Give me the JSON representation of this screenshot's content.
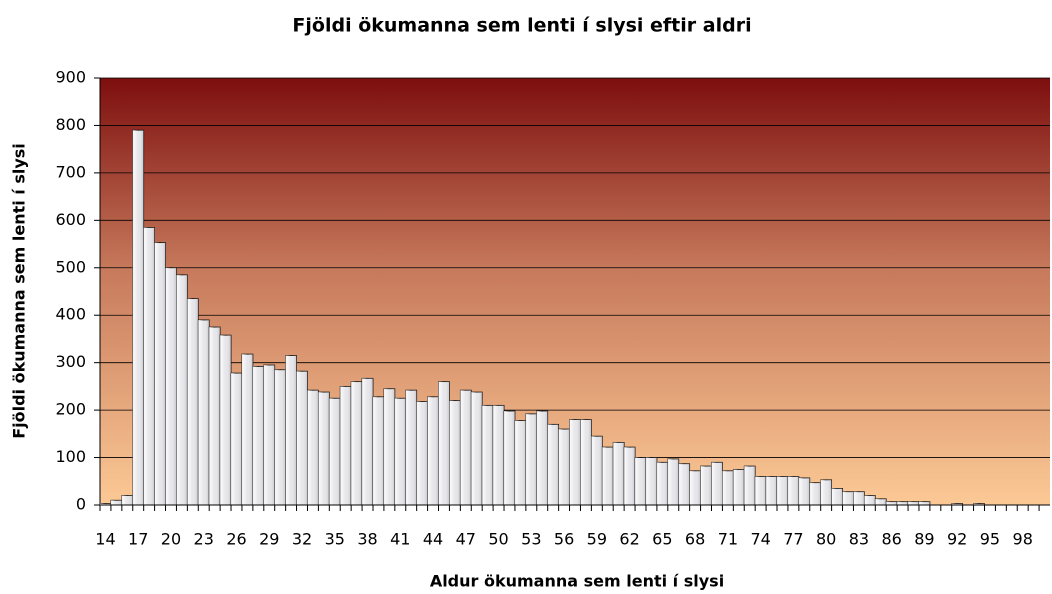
{
  "chart_data": {
    "type": "bar",
    "title": "Fjöldi ökumanna sem lenti í slysi eftir aldri",
    "x_label": "Aldur ökumanna sem lenti í slysi",
    "y_label": "Fjöldi ökumanna sem lenti í slysi",
    "categories": [
      "14",
      null,
      null,
      "17",
      null,
      null,
      "20",
      null,
      null,
      "23",
      null,
      null,
      "26",
      null,
      null,
      "29",
      null,
      null,
      "32",
      null,
      null,
      "35",
      null,
      null,
      "38",
      null,
      null,
      "41",
      null,
      null,
      "44",
      null,
      null,
      "47",
      null,
      null,
      "50",
      null,
      null,
      "53",
      null,
      null,
      "56",
      null,
      null,
      "59",
      null,
      null,
      "62",
      null,
      null,
      "65",
      null,
      null,
      "68",
      null,
      null,
      "71",
      null,
      null,
      "74",
      null,
      null,
      "77",
      null,
      null,
      "80",
      null,
      null,
      "83",
      null,
      null,
      "86",
      null,
      null,
      "89",
      null,
      null,
      "92",
      null,
      null,
      "95",
      null,
      null,
      "98",
      null,
      null
    ],
    "values": [
      3,
      10,
      20,
      790,
      585,
      553,
      500,
      485,
      435,
      390,
      375,
      358,
      278,
      318,
      292,
      295,
      285,
      315,
      282,
      242,
      238,
      225,
      250,
      260,
      267,
      228,
      245,
      225,
      242,
      218,
      228,
      260,
      220,
      242,
      238,
      210,
      210,
      198,
      178,
      192,
      198,
      170,
      160,
      180,
      180,
      145,
      122,
      132,
      122,
      100,
      100,
      90,
      97,
      87,
      72,
      82,
      90,
      72,
      75,
      82,
      60,
      60,
      60,
      60,
      57,
      47,
      53,
      35,
      28,
      28,
      20,
      13,
      7,
      7,
      7,
      7,
      0,
      0,
      3,
      0,
      3,
      0,
      0,
      0,
      0,
      0,
      0
    ],
    "color": "#e6e6ea",
    "ylim": [
      0,
      900
    ],
    "yticks": [
      0,
      100,
      200,
      300,
      400,
      500,
      600,
      700,
      800,
      900
    ],
    "grid": true
  }
}
